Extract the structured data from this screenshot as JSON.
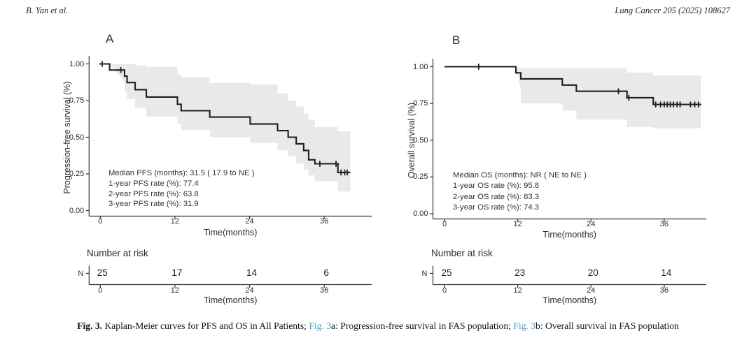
{
  "page": {
    "header_left": "B. Yan et al.",
    "header_right": "Lung Cancer 205 (2025) 108627",
    "caption_segments": [
      {
        "text": "Fig. 3.",
        "style": "bold"
      },
      {
        "text": " Kaplan-Meier curves for PFS and OS in All Patients; ",
        "style": "normal"
      },
      {
        "text": "Fig. 3",
        "style": "link"
      },
      {
        "text": "a: Progression-free survival in FAS population; ",
        "style": "normal"
      },
      {
        "text": "Fig. 3",
        "style": "link"
      },
      {
        "text": "b: Overall survival in FAS population",
        "style": "normal"
      }
    ],
    "colors": {
      "curve": "#1f1f1f",
      "confidence_band": "#e9e9e9",
      "axis": "#333333",
      "text": "#2b2b2b",
      "link_blue": "#4aa0d6",
      "background": "#ffffff"
    }
  },
  "chart_data": [
    {
      "type": "line",
      "variant": "kaplan-meier-step",
      "panel_label": "A",
      "ylabel": "Progression-free survival (%)",
      "xlabel": "Time(months)",
      "xticks": [
        0,
        12,
        24,
        36
      ],
      "xtick_labels": [
        "0",
        "12",
        "24",
        "36"
      ],
      "ytick_values": [
        0.0,
        0.25,
        0.5,
        0.75,
        1.0
      ],
      "ytick_labels": [
        "0.00",
        "0.25",
        "0.50",
        "0.75",
        "1.00"
      ],
      "xlim": [
        0,
        40.5
      ],
      "ylim": [
        0,
        1.0
      ],
      "grid": "off",
      "steps": [
        [
          0,
          1.0
        ],
        [
          1.5,
          0.958
        ],
        [
          3.9,
          0.917
        ],
        [
          4.3,
          0.873
        ],
        [
          5.6,
          0.824
        ],
        [
          7.4,
          0.774
        ],
        [
          12.4,
          0.725
        ],
        [
          13.0,
          0.681
        ],
        [
          17.6,
          0.638
        ],
        [
          24.1,
          0.59
        ],
        [
          28.5,
          0.545
        ],
        [
          30.2,
          0.5
        ],
        [
          31.5,
          0.455
        ],
        [
          32.7,
          0.41
        ],
        [
          33.5,
          0.346
        ],
        [
          34.5,
          0.319
        ],
        [
          38.2,
          0.26
        ]
      ],
      "end_time": 40.2,
      "censor_marks": [
        [
          0.3,
          1.0
        ],
        [
          3.3,
          0.958
        ],
        [
          35.3,
          0.319
        ],
        [
          37.9,
          0.319
        ],
        [
          38.7,
          0.26
        ],
        [
          39.3,
          0.26
        ],
        [
          39.7,
          0.26
        ]
      ],
      "band_upper": [
        [
          1.5,
          1.0
        ],
        [
          5.6,
          0.99
        ],
        [
          7.4,
          0.98
        ],
        [
          12.4,
          0.93
        ],
        [
          13.0,
          0.91
        ],
        [
          17.6,
          0.87
        ],
        [
          24.1,
          0.86
        ],
        [
          28.5,
          0.8
        ],
        [
          30.2,
          0.75
        ],
        [
          31.5,
          0.71
        ],
        [
          32.7,
          0.66
        ],
        [
          33.5,
          0.62
        ],
        [
          34.5,
          0.57
        ],
        [
          38.2,
          0.54
        ]
      ],
      "band_lower": [
        [
          1.5,
          0.88
        ],
        [
          3.9,
          0.81
        ],
        [
          4.3,
          0.76
        ],
        [
          5.6,
          0.7
        ],
        [
          7.4,
          0.64
        ],
        [
          12.4,
          0.59
        ],
        [
          13.0,
          0.55
        ],
        [
          17.6,
          0.5
        ],
        [
          24.1,
          0.46
        ],
        [
          28.5,
          0.41
        ],
        [
          30.2,
          0.37
        ],
        [
          31.5,
          0.32
        ],
        [
          32.7,
          0.28
        ],
        [
          33.5,
          0.24
        ],
        [
          34.5,
          0.2
        ],
        [
          38.2,
          0.13
        ]
      ],
      "annotation_lines": [
        "Median PFS (months): 31.5 ( 17.9 to NE )",
        "1-year PFS rate (%): 77.4",
        "2-year PFS rate (%): 63.8",
        "3-year PFS rate (%): 31.9"
      ],
      "risk_table": {
        "title": "Number at risk",
        "row_label": "N",
        "times": [
          0,
          12,
          24,
          36
        ],
        "values": [
          "25",
          "17",
          "14",
          "6"
        ],
        "xlabel": "Time(months)"
      }
    },
    {
      "type": "line",
      "variant": "kaplan-meier-step",
      "panel_label": "B",
      "ylabel": "Overall survival (%)",
      "xlabel": "Time(months)",
      "xticks": [
        0,
        12,
        24,
        36
      ],
      "xtick_labels": [
        "0",
        "12",
        "24",
        "36"
      ],
      "ytick_values": [
        0.0,
        0.25,
        0.5,
        0.75,
        1.0
      ],
      "ytick_labels": [
        "0.00",
        "0.25",
        "0.50",
        "0.75",
        "1.00"
      ],
      "xlim": [
        0,
        42.5
      ],
      "ylim": [
        0,
        1.0
      ],
      "grid": "off",
      "steps": [
        [
          0,
          1.0
        ],
        [
          11.7,
          0.958
        ],
        [
          12.5,
          0.917
        ],
        [
          19.3,
          0.875
        ],
        [
          21.6,
          0.833
        ],
        [
          29.9,
          0.789
        ],
        [
          34.2,
          0.743
        ]
      ],
      "end_time": 42.0,
      "censor_marks": [
        [
          5.6,
          1.0
        ],
        [
          28.5,
          0.833
        ],
        [
          30.2,
          0.789
        ],
        [
          34.6,
          0.743
        ],
        [
          35.4,
          0.743
        ],
        [
          36.0,
          0.743
        ],
        [
          36.5,
          0.743
        ],
        [
          37.0,
          0.743
        ],
        [
          37.5,
          0.743
        ],
        [
          38.1,
          0.743
        ],
        [
          38.6,
          0.743
        ],
        [
          40.3,
          0.743
        ],
        [
          41.0,
          0.743
        ],
        [
          41.6,
          0.743
        ]
      ],
      "band_upper": [
        [
          11.7,
          0.99
        ],
        [
          29.9,
          0.96
        ],
        [
          34.2,
          0.94
        ]
      ],
      "band_lower": [
        [
          11.7,
          0.85
        ],
        [
          12.5,
          0.75
        ],
        [
          19.3,
          0.7
        ],
        [
          21.6,
          0.64
        ],
        [
          29.9,
          0.59
        ],
        [
          34.2,
          0.58
        ]
      ],
      "annotation_lines": [
        "Median OS (months): NR ( NE to NE )",
        "1-year OS rate (%): 95.8",
        "2-year OS rate (%): 83.3",
        "3-year OS rate (%): 74.3"
      ],
      "risk_table": {
        "title": "Number at risk",
        "row_label": "N",
        "times": [
          0,
          12,
          24,
          36
        ],
        "values": [
          "25",
          "23",
          "20",
          "14"
        ],
        "xlabel": "Time(months)"
      }
    }
  ]
}
